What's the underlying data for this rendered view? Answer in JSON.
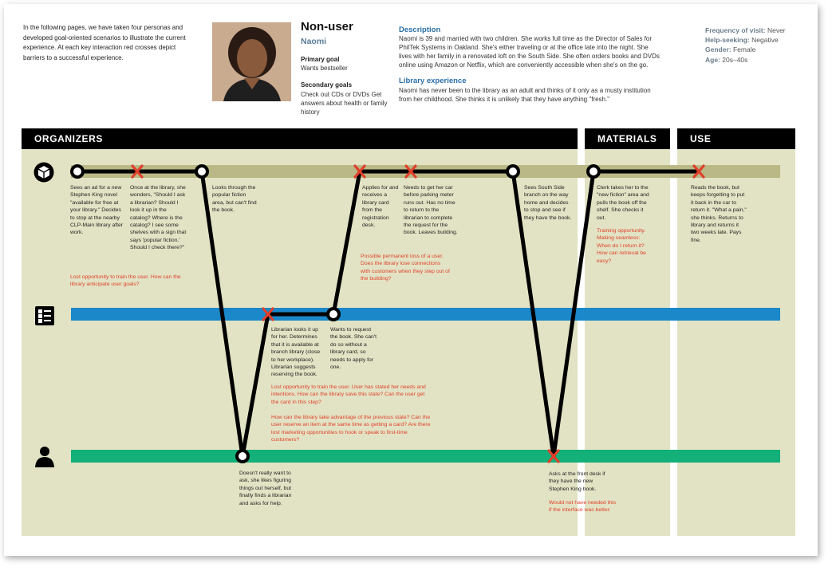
{
  "intro": "In the following pages, we have taken four personas and developed goal-oriented scenarios to illustrate the current experience. At each key interaction red crosses depict barriers to a successful experience.",
  "persona": {
    "type": "Non-user",
    "name": "Naomi",
    "primary_goal_heading": "Primary goal",
    "primary_goal": "Wants bestseller",
    "secondary_goals_heading": "Secondary goals",
    "secondary_goals": "Check out CDs or DVDs Get answers about health or family history"
  },
  "description": {
    "heading": "Description",
    "text": "Naomi is 39 and married with two children. She works full time as the Director of Sales for PhilTek Systems in Oakland. She's either traveling or at the office late into the night. She lives with her family in a renovated loft on the South Side. She often orders books and DVDs online using Amazon or Netflix, which are conveniently accessible when she's on the go.",
    "library_heading": "Library experience",
    "library_text": "Naomi has never been to the library as an adult and thinks of it only as a musty institution from her childhood. She thinks it is unlikely that they have anything \"fresh.\""
  },
  "facts": {
    "frequency_label": "Frequency of visit:",
    "frequency": "Never",
    "help_label": "Help-seeking:",
    "help": "Negative",
    "gender_label": "Gender:",
    "gender": "Female",
    "age_label": "Age:",
    "age": "20s–40s"
  },
  "headers": {
    "organizers": "ORGANIZERS",
    "materials": "MATERIALS",
    "use": "USE"
  },
  "icons": {
    "row1": "building-cube-icon",
    "row2": "catalog-list-icon",
    "row3": "person-icon"
  },
  "colors": {
    "panel": "#e2e3c4",
    "row1": "#b9b886",
    "row2": "#1a88c9",
    "row3": "#13b07a",
    "cross": "#e0402b"
  },
  "steps": {
    "s1": "Sees an ad for a new Stephen King novel \"available for free at your library.\" Decides to stop at the nearby CLP-Main library after work.",
    "s2": "Once at the library, she wonders, \"Should I ask a librarian? Should I look it up in the catalog? Where is the catalog? I see some shelves with a sign that says 'popular fiction.' Should I check there?\"",
    "s2_red": "Lost opportunity to train the user. How can the library anticipate user goals?",
    "s3": "Looks through the popular fiction area, but can't find the book.",
    "s4": "Applies for and receives a library card from the registration desk.",
    "s5": "Needs to get her car before parking meter runs out. Has no time to return to the librarian to complete the request for the book. Leaves building.",
    "s5_red": "Possible permanent loss of a user. Does the library lose connections with customers when they step out of the building?",
    "s6": "Sees South Side branch on the way home and decides to stop and see if they have the book.",
    "s7": "Clerk takes her to the \"new fiction\" area and pulls the book off the shelf. She checks it out.",
    "s7_red": "Training opportunity. Making seamless: When do I return it? How can retrieval be easy?",
    "s8": "Reads the book, but keeps forgetting to put it back in the car to return it. \"What a pain,\" she thinks. Returns to library and returns it two weeks late. Pays fine.",
    "m1": "Librarian looks it up for her. Determines that it is available at branch library (close to her workplace). Librarian suggests reserving the book.",
    "m2": "Wants to request the book. She can't do so without a library card, so needs to apply for one.",
    "m_red1": "Lost opportunity to train the user. User has stated her needs and intentions. How can the library save this state? Can the user get the card in this step?",
    "m_red2": "How can the library take advantage of the previous state? Can the user reserve an item at the same time as getting a card? Are there lost marketing opportunities to hook or speak to first-time customers?",
    "b1": "Doesn't really want to ask, she likes figuring things out herself, but finally finds a librarian and asks for help.",
    "b2": "Asks at the front desk if they have the new Stephen King book.",
    "b2_red": "Would not have needed this if the interface was better."
  }
}
